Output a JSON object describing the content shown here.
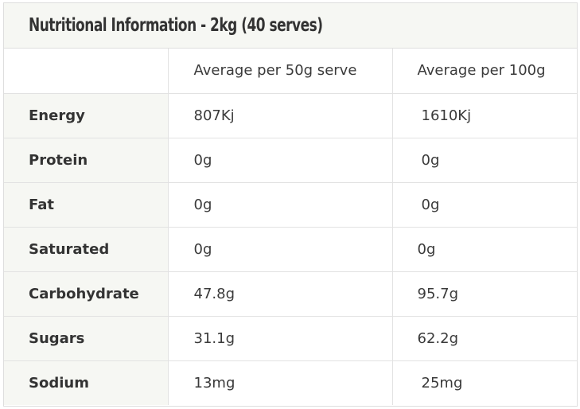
{
  "panel": {
    "title": "Nutritional Information - 2kg (40 serves)"
  },
  "table": {
    "headers": [
      "",
      "Average per 50g serve",
      "Average per 100g"
    ],
    "rows": [
      {
        "nutrient": "Energy",
        "per_serve": "807Kj",
        "per_100g": "1610Kj"
      },
      {
        "nutrient": "Protein",
        "per_serve": "0g",
        "per_100g": "0g"
      },
      {
        "nutrient": "Fat",
        "per_serve": "0g",
        "per_100g": "0g"
      },
      {
        "nutrient": "Saturated",
        "per_serve": "0g",
        "per_100g": "0g"
      },
      {
        "nutrient": "Carbohydrate",
        "per_serve": "47.8g",
        "per_100g": "95.7g"
      },
      {
        "nutrient": "Sugars",
        "per_serve": "31.1g",
        "per_100g": "62.2g"
      },
      {
        "nutrient": "Sodium",
        "per_serve": "13mg",
        "per_100g": "25mg"
      }
    ]
  },
  "colors": {
    "header_bg": "#f6f7f3",
    "border": "#e2e2e2",
    "text": "#3a3a3a"
  }
}
